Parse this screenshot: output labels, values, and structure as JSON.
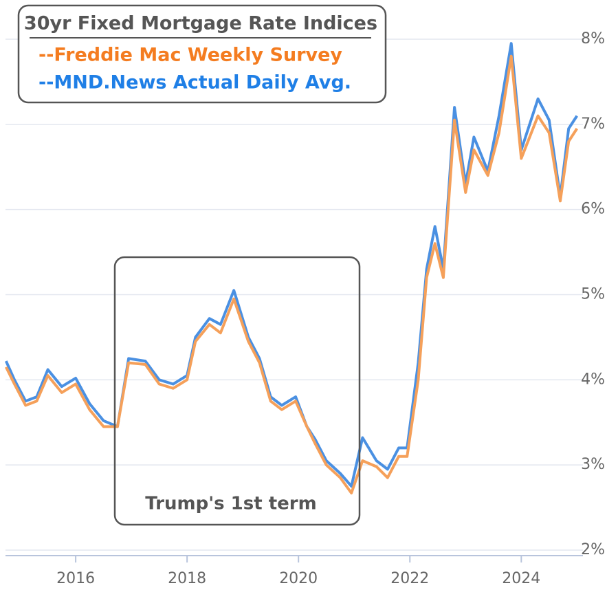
{
  "chart_data": {
    "type": "line",
    "title": "30yr Fixed Mortgage Rate Indices",
    "annotations": [
      "Trump's 1st term"
    ],
    "x": [
      2014.75,
      2014.9,
      2015.1,
      2015.3,
      2015.5,
      2015.75,
      2016.0,
      2016.25,
      2016.5,
      2016.75,
      2016.95,
      2017.25,
      2017.5,
      2017.75,
      2018.0,
      2018.15,
      2018.4,
      2018.6,
      2018.84,
      2019.1,
      2019.3,
      2019.5,
      2019.7,
      2019.95,
      2020.15,
      2020.3,
      2020.5,
      2020.75,
      2020.95,
      2021.15,
      2021.4,
      2021.6,
      2021.8,
      2021.95,
      2022.15,
      2022.3,
      2022.45,
      2022.6,
      2022.8,
      2023.0,
      2023.15,
      2023.4,
      2023.6,
      2023.82,
      2024.0,
      2024.3,
      2024.5,
      2024.7,
      2024.85,
      2025.0
    ],
    "series": [
      {
        "name": "--MND.News Actual Daily Avg.",
        "color": "#4a90e2",
        "label_color": "#1f7fe6",
        "values": [
          4.22,
          4.0,
          3.75,
          3.8,
          4.12,
          3.92,
          4.02,
          3.72,
          3.52,
          3.45,
          4.25,
          4.22,
          4.0,
          3.95,
          4.05,
          4.5,
          4.72,
          4.65,
          5.05,
          4.5,
          4.25,
          3.8,
          3.7,
          3.8,
          3.45,
          3.3,
          3.05,
          2.9,
          2.75,
          3.32,
          3.05,
          2.95,
          3.2,
          3.2,
          4.2,
          5.3,
          5.8,
          5.3,
          7.2,
          6.3,
          6.85,
          6.45,
          7.1,
          7.95,
          6.7,
          7.3,
          7.05,
          6.15,
          6.95,
          7.1
        ]
      },
      {
        "name": "--Freddie Mac Weekly Survey",
        "color": "#f5a05a",
        "label_color": "#f47c20",
        "values": [
          4.15,
          3.95,
          3.7,
          3.75,
          4.05,
          3.85,
          3.95,
          3.65,
          3.45,
          3.45,
          4.2,
          4.18,
          3.95,
          3.9,
          4.0,
          4.45,
          4.65,
          4.55,
          4.95,
          4.45,
          4.2,
          3.75,
          3.65,
          3.75,
          3.45,
          3.25,
          3.0,
          2.85,
          2.67,
          3.05,
          2.98,
          2.85,
          3.1,
          3.1,
          4.0,
          5.2,
          5.6,
          5.2,
          7.05,
          6.2,
          6.7,
          6.4,
          6.9,
          7.8,
          6.6,
          7.1,
          6.9,
          6.1,
          6.8,
          6.95
        ]
      }
    ],
    "xlim": [
      2014.74,
      2025.07
    ],
    "xticks": [
      2016,
      2018,
      2020,
      2022,
      2024
    ],
    "ylim": [
      2,
      8
    ],
    "yticks": [
      {
        "value": 2,
        "label": "2%"
      },
      {
        "value": 3,
        "label": "3%"
      },
      {
        "value": 4,
        "label": "4%"
      },
      {
        "value": 5,
        "label": "5%"
      },
      {
        "value": 6,
        "label": "6%"
      },
      {
        "value": 7,
        "label": "7%"
      },
      {
        "value": 8,
        "label": "8%"
      }
    ],
    "grid": true
  }
}
